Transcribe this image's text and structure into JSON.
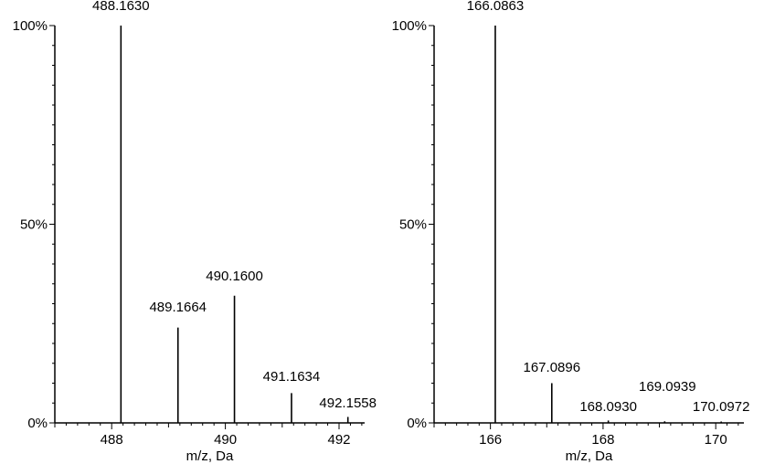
{
  "chart_data": [
    {
      "type": "bar",
      "xlabel": "m/z, Da",
      "ylabel": "",
      "xlim": [
        487.0,
        492.45
      ],
      "ylim": [
        0,
        100
      ],
      "xticks": [
        {
          "value": 488,
          "label": "488"
        },
        {
          "value": 490,
          "label": "490"
        },
        {
          "value": 492,
          "label": "492"
        }
      ],
      "yticks": [
        {
          "value": 0,
          "label": "0%"
        },
        {
          "value": 50,
          "label": "50%"
        },
        {
          "value": 100,
          "label": "100%"
        }
      ],
      "peaks": [
        {
          "x": 488.163,
          "y": 100,
          "label": "488.1630"
        },
        {
          "x": 489.1664,
          "y": 24,
          "label": "489.1664"
        },
        {
          "x": 490.16,
          "y": 32,
          "label": "490.1600"
        },
        {
          "x": 491.1634,
          "y": 7.5,
          "label": "491.1634"
        },
        {
          "x": 492.1558,
          "y": 1.5,
          "label": "492.1558"
        }
      ]
    },
    {
      "type": "bar",
      "xlabel": "m/z, Da",
      "ylabel": "",
      "xlim": [
        165.0,
        170.5
      ],
      "ylim": [
        0,
        100
      ],
      "xticks": [
        {
          "value": 166,
          "label": "166"
        },
        {
          "value": 168,
          "label": "168"
        },
        {
          "value": 170,
          "label": "170"
        }
      ],
      "yticks": [
        {
          "value": 0,
          "label": "0%"
        },
        {
          "value": 50,
          "label": "50%"
        },
        {
          "value": 100,
          "label": "100%"
        }
      ],
      "peaks": [
        {
          "x": 166.0863,
          "y": 100,
          "label": "166.0863"
        },
        {
          "x": 167.0896,
          "y": 10,
          "label": "167.0896"
        },
        {
          "x": 168.093,
          "y": 0.6,
          "label": "168.0930"
        },
        {
          "x": 169.0939,
          "y": 0.4,
          "label": "169.0939"
        },
        {
          "x": 170.0972,
          "y": 0.2,
          "label": "170.0972"
        }
      ]
    }
  ]
}
